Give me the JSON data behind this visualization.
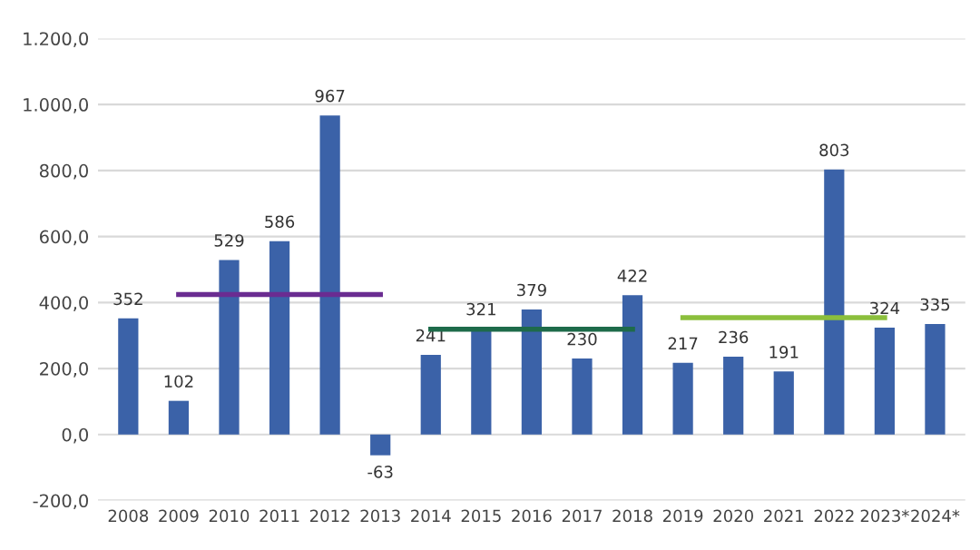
{
  "chart_data": {
    "type": "bar",
    "categories": [
      "2008",
      "2009",
      "2010",
      "2011",
      "2012",
      "2013",
      "2014",
      "2015",
      "2016",
      "2017",
      "2018",
      "2019",
      "2020",
      "2021",
      "2022",
      "2023*",
      "2024*"
    ],
    "series": [
      {
        "color": "#3b62a8",
        "values": [
          352,
          102,
          529,
          586,
          967,
          -63,
          241,
          321,
          379,
          230,
          422,
          217,
          236,
          191,
          803,
          324,
          335
        ],
        "value_labels": [
          "352",
          "102",
          "529",
          "586",
          "967",
          "-63",
          "241",
          "321",
          "379",
          "230",
          "422",
          "217",
          "236",
          "191",
          "803",
          "324",
          "335"
        ]
      },
      {
        "type": "line",
        "color": "#6a2c91",
        "values": [
          null,
          424,
          424,
          424,
          424,
          424,
          null,
          null,
          null,
          null,
          null,
          null,
          null,
          null,
          null,
          null,
          null
        ]
      },
      {
        "type": "line",
        "color": "#1e6b4a",
        "values": [
          null,
          null,
          null,
          null,
          null,
          null,
          319,
          319,
          319,
          319,
          319,
          null,
          null,
          null,
          null,
          null,
          null
        ]
      },
      {
        "type": "line",
        "color": "#8bbf3c",
        "values": [
          null,
          null,
          null,
          null,
          null,
          null,
          null,
          null,
          null,
          null,
          null,
          354,
          354,
          354,
          354,
          354,
          null
        ]
      }
    ],
    "ylim": [
      -200,
      1200
    ],
    "yticks": [
      {
        "value": -200,
        "label": "-200,0"
      },
      {
        "value": 0,
        "label": "0,0"
      },
      {
        "value": 200,
        "label": "200,0"
      },
      {
        "value": 400,
        "label": "400,0"
      },
      {
        "value": 600,
        "label": "600,0"
      },
      {
        "value": 800,
        "label": "800,0"
      },
      {
        "value": 1000,
        "label": "1.000,0"
      },
      {
        "value": 1200,
        "label": "1.200,0"
      }
    ],
    "grid": "y"
  }
}
